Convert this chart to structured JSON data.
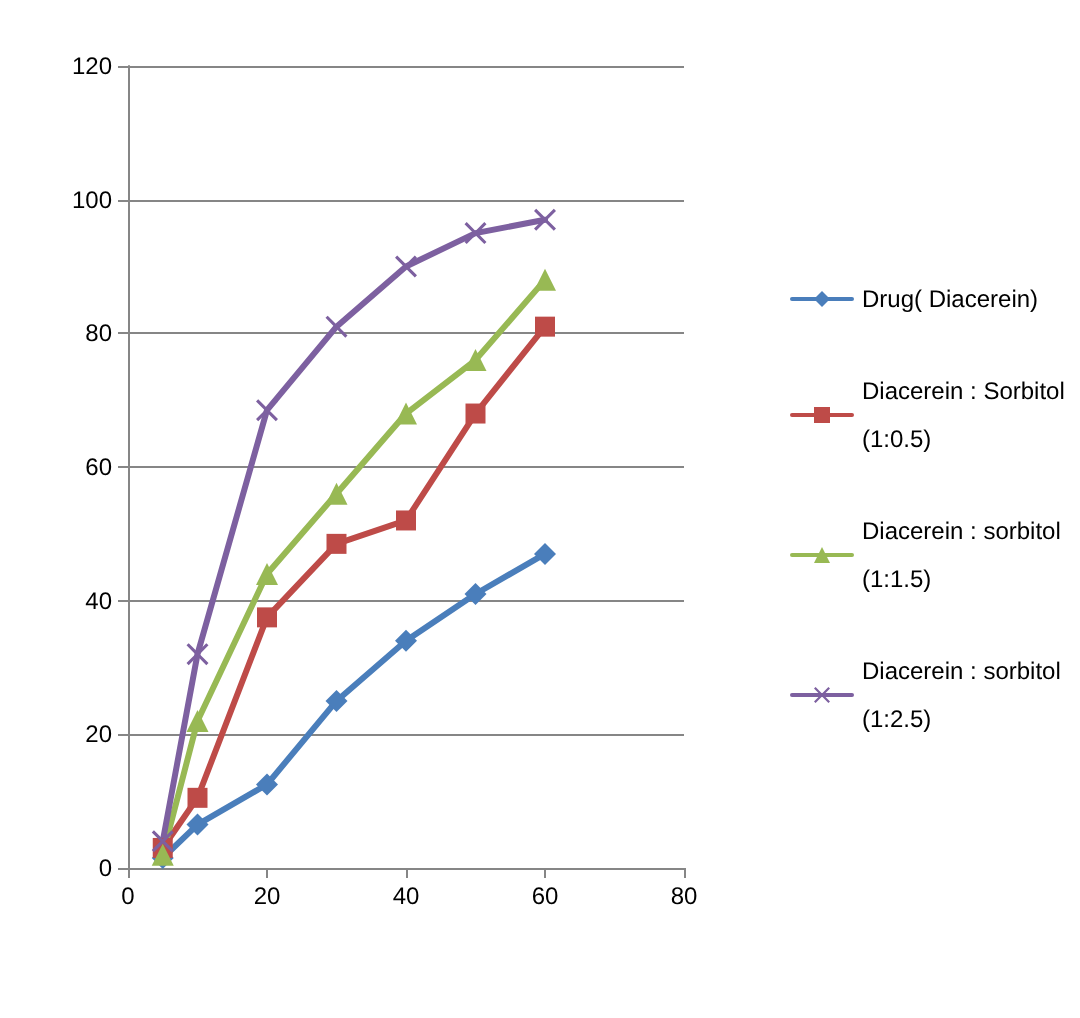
{
  "chart_data": {
    "type": "line",
    "x": [
      5,
      10,
      20,
      30,
      40,
      50,
      60
    ],
    "series": [
      {
        "name": "Drug( Diacerein)",
        "color": "#4a7ebb",
        "marker": "diamond",
        "values": [
          1.5,
          6.5,
          12.5,
          25,
          34,
          41,
          47
        ]
      },
      {
        "name": "Diacerein : Sorbitol (1:0.5)",
        "color": "#be4b48",
        "marker": "square",
        "values": [
          3,
          10.5,
          37.5,
          48.5,
          52,
          68,
          81
        ]
      },
      {
        "name": "Diacerein : sorbitol (1:1.5)",
        "color": "#98b954",
        "marker": "triangle",
        "values": [
          2,
          22,
          44,
          56,
          68,
          76,
          88
        ]
      },
      {
        "name": "Diacerein : sorbitol (1:2.5)",
        "color": "#7d60a0",
        "marker": "cross",
        "values": [
          4,
          32,
          68.5,
          81,
          90,
          95,
          97
        ]
      }
    ],
    "xlim": [
      0,
      80
    ],
    "xticks": [
      0,
      20,
      40,
      60,
      80
    ],
    "ylim": [
      0,
      120
    ],
    "yticks": [
      0,
      20,
      40,
      60,
      80,
      100,
      120
    ],
    "grid": "y",
    "legend": "right",
    "line_style": "solid"
  }
}
